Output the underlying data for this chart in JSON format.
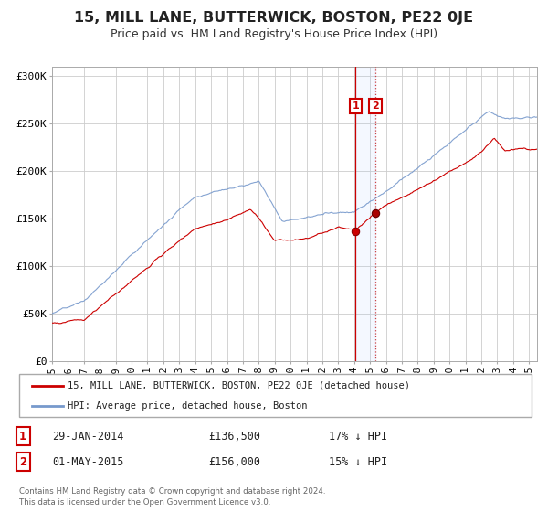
{
  "title": "15, MILL LANE, BUTTERWICK, BOSTON, PE22 0JE",
  "subtitle": "Price paid vs. HM Land Registry's House Price Index (HPI)",
  "title_fontsize": 11.5,
  "subtitle_fontsize": 9,
  "background_color": "#ffffff",
  "grid_color": "#cccccc",
  "red_line_color": "#cc0000",
  "blue_line_color": "#7799cc",
  "point1": {
    "date_num": 2014.08,
    "price": 136500,
    "label": "1",
    "date_str": "29-JAN-2014",
    "hpi_diff": "17% ↓ HPI"
  },
  "point2": {
    "date_num": 2015.33,
    "price": 156000,
    "label": "2",
    "date_str": "01-MAY-2015",
    "hpi_diff": "15% ↓ HPI"
  },
  "legend1_label": "15, MILL LANE, BUTTERWICK, BOSTON, PE22 0JE (detached house)",
  "legend2_label": "HPI: Average price, detached house, Boston",
  "footer": "Contains HM Land Registry data © Crown copyright and database right 2024.\nThis data is licensed under the Open Government Licence v3.0.",
  "ylim": [
    0,
    310000
  ],
  "xlim_start": 1995.0,
  "xlim_end": 2025.5,
  "yticks": [
    0,
    50000,
    100000,
    150000,
    200000,
    250000,
    300000
  ],
  "ytick_labels": [
    "£0",
    "£50K",
    "£100K",
    "£150K",
    "£200K",
    "£250K",
    "£300K"
  ],
  "xticks": [
    1995,
    1996,
    1997,
    1998,
    1999,
    2000,
    2001,
    2002,
    2003,
    2004,
    2005,
    2006,
    2007,
    2008,
    2009,
    2010,
    2011,
    2012,
    2013,
    2014,
    2015,
    2016,
    2017,
    2018,
    2019,
    2020,
    2021,
    2022,
    2023,
    2024,
    2025
  ]
}
